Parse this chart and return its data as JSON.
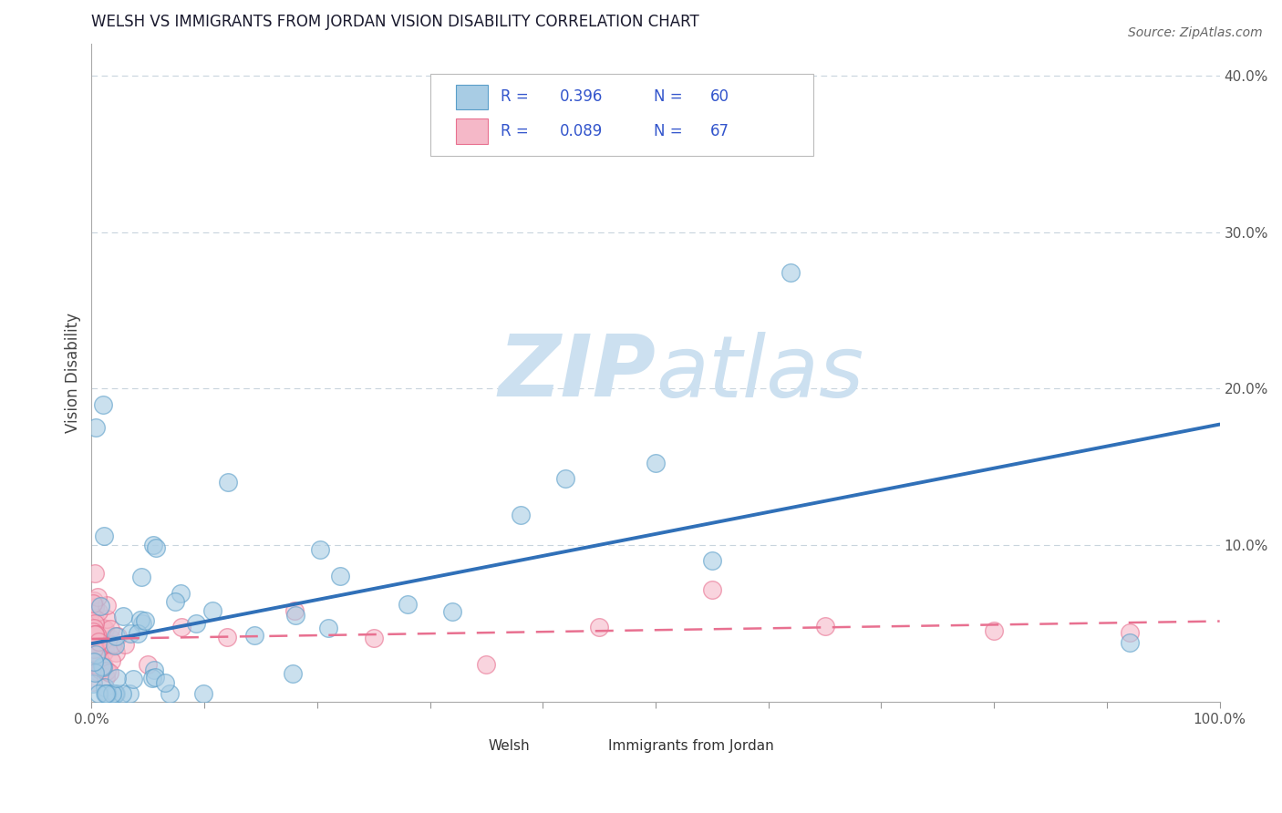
{
  "title": "WELSH VS IMMIGRANTS FROM JORDAN VISION DISABILITY CORRELATION CHART",
  "source": "Source: ZipAtlas.com",
  "ylabel": "Vision Disability",
  "welsh_R": 0.396,
  "welsh_N": 60,
  "jordan_R": 0.089,
  "jordan_N": 67,
  "welsh_color": "#a8cce4",
  "welsh_edge": "#5a9ec9",
  "jordan_color": "#f5b8c8",
  "jordan_edge": "#e87090",
  "welsh_line_color": "#3070b8",
  "jordan_line_color": "#e87090",
  "title_color": "#1a1a2e",
  "title_fontsize": 12,
  "watermark_zip": "ZIP",
  "watermark_atlas": "atlas",
  "watermark_color": "#cce0f0",
  "xlim": [
    0.0,
    1.0
  ],
  "ylim": [
    0.0,
    0.42
  ],
  "background_color": "#ffffff",
  "grid_color": "#c8d4dd",
  "legend_color": "#3355cc",
  "ytick_right_labels": [
    "10.0%",
    "20.0%",
    "30.0%",
    "40.0%"
  ],
  "ytick_right_vals": [
    0.1,
    0.2,
    0.3,
    0.4
  ]
}
